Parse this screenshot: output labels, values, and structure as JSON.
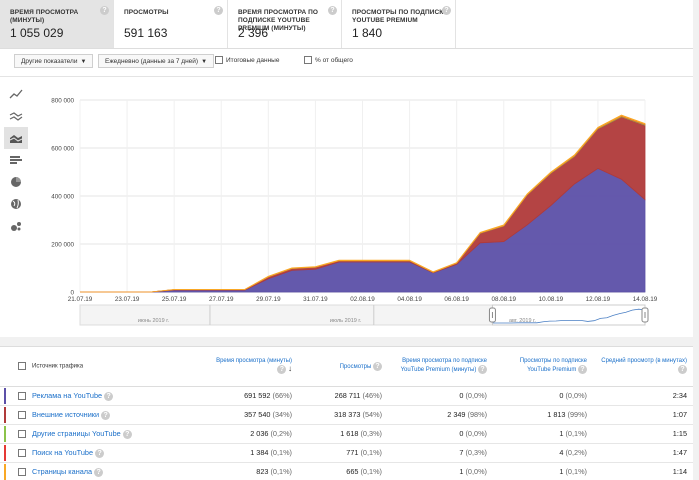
{
  "metrics": [
    {
      "label": "ВРЕМЯ ПРОСМОТРА (МИНУТЫ)",
      "value": "1 055 029",
      "active": true
    },
    {
      "label": "ПРОСМОТРЫ",
      "value": "591 163",
      "active": false
    },
    {
      "label": "ВРЕМЯ ПРОСМОТРА ПО ПОДПИСКЕ YOUTUBE PREMIUM (МИНУТЫ)",
      "value": "2 396",
      "active": false
    },
    {
      "label": "ПРОСМОТРЫ ПО ПОДПИСКЕ YOUTUBE PREMIUM",
      "value": "1 840",
      "active": false
    }
  ],
  "toolbar": {
    "other_metrics": "Другие показатели",
    "period": "Ежедневно (данные за 7 дней)",
    "totals": "Итоговые данные",
    "percent": "% от общего"
  },
  "chart_type_icons": [
    "line-chart-icon",
    "multi-line-icon",
    "stacked-area-icon",
    "bar-chart-icon",
    "pie-chart-icon",
    "map-icon",
    "bubble-chart-icon"
  ],
  "chart_data": {
    "type": "area",
    "stacked": true,
    "x": [
      "21.07.19",
      "22.07.19",
      "23.07.19",
      "24.07.19",
      "25.07.19",
      "26.07.19",
      "27.07.19",
      "28.07.19",
      "29.07.19",
      "30.07.19",
      "31.07.19",
      "01.08.19",
      "02.08.19",
      "03.08.19",
      "04.08.19",
      "05.08.19",
      "06.08.19",
      "07.08.19",
      "08.08.19",
      "09.08.19",
      "10.08.19",
      "11.08.19",
      "12.08.19",
      "13.08.19",
      "14.08.19"
    ],
    "x_tick_labels": [
      "21.07.19",
      "23.07.19",
      "25.07.19",
      "27.07.19",
      "29.07.19",
      "31.07.19",
      "02.08.19",
      "04.08.19",
      "06.08.19",
      "08.08.19",
      "10.08.19",
      "12.08.19",
      "14.08.19"
    ],
    "y_tick_labels": [
      "0",
      "200 000",
      "400 000",
      "600 000",
      "800 000"
    ],
    "ylim": [
      0,
      800000
    ],
    "series": [
      {
        "name": "Реклама на YouTube",
        "color": "#5c50a8",
        "values": [
          0,
          0,
          0,
          0,
          8000,
          8000,
          8000,
          8000,
          55000,
          90000,
          95000,
          125000,
          125000,
          125000,
          125000,
          80000,
          115000,
          205000,
          210000,
          280000,
          360000,
          450000,
          515000,
          470000,
          385000
        ]
      },
      {
        "name": "Внешние источники",
        "color": "#b03a3a",
        "values": [
          0,
          0,
          0,
          0,
          2000,
          2000,
          2000,
          2000,
          8000,
          8000,
          8000,
          5000,
          5000,
          5000,
          5000,
          2000,
          5000,
          40000,
          65000,
          125000,
          135000,
          115000,
          165000,
          260000,
          310000
        ]
      },
      {
        "name": "Другие страницы YouTube",
        "color": "#8bc34a",
        "values": [
          0,
          0,
          0,
          0,
          0,
          0,
          0,
          0,
          500,
          500,
          500,
          500,
          500,
          500,
          500,
          500,
          500,
          1000,
          1000,
          1000,
          1500,
          2000,
          2000,
          2500,
          2500
        ]
      },
      {
        "name": "Поиск на YouTube",
        "color": "#e53935",
        "values": [
          0,
          0,
          0,
          0,
          0,
          0,
          0,
          0,
          0,
          0,
          0,
          0,
          0,
          0,
          0,
          0,
          0,
          500,
          500,
          500,
          500,
          1000,
          1000,
          1500,
          1500
        ]
      },
      {
        "name": "Страницы канала",
        "color": "#f9a825",
        "values": [
          0,
          0,
          0,
          0,
          1000,
          1000,
          1000,
          1000,
          2000,
          2000,
          2000,
          2000,
          2000,
          2000,
          2000,
          2000,
          2000,
          2000,
          3000,
          3000,
          3000,
          3000,
          3000,
          3000,
          3000
        ]
      }
    ],
    "grid": true
  },
  "navigator": {
    "labels": [
      "июнь 2019 г.",
      "июль 2019 г.",
      "авг. 2019 г."
    ]
  },
  "table": {
    "headers": {
      "source": "Источник трафика",
      "watch_time": "Время просмотра (минуты)",
      "views": "Просмотры",
      "premium_time": "Время просмотра по подписке YouTube Premium (минуты)",
      "premium_views": "Просмотры по подписке YouTube Premium",
      "avg_duration": "Средний просмотр (в минутах)"
    },
    "rows": [
      {
        "color": "#5c50a8",
        "source": "Реклама на YouTube",
        "watch": "691 592",
        "watch_pct": "(66%)",
        "views": "268 711",
        "views_pct": "(46%)",
        "ptime": "0",
        "ptime_pct": "(0,0%)",
        "pviews": "0",
        "pviews_pct": "(0,0%)",
        "avg": "2:34"
      },
      {
        "color": "#b03a3a",
        "source": "Внешние источники",
        "watch": "357 540",
        "watch_pct": "(34%)",
        "views": "318 373",
        "views_pct": "(54%)",
        "ptime": "2 349",
        "ptime_pct": "(98%)",
        "pviews": "1 813",
        "pviews_pct": "(99%)",
        "avg": "1:07"
      },
      {
        "color": "#8bc34a",
        "source": "Другие страницы YouTube",
        "watch": "2 036",
        "watch_pct": "(0,2%)",
        "views": "1 618",
        "views_pct": "(0,3%)",
        "ptime": "0",
        "ptime_pct": "(0,0%)",
        "pviews": "1",
        "pviews_pct": "(0,1%)",
        "avg": "1:15"
      },
      {
        "color": "#e53935",
        "source": "Поиск на YouTube",
        "watch": "1 384",
        "watch_pct": "(0,1%)",
        "views": "771",
        "views_pct": "(0,1%)",
        "ptime": "7",
        "ptime_pct": "(0,3%)",
        "pviews": "4",
        "pviews_pct": "(0,2%)",
        "avg": "1:47"
      },
      {
        "color": "#f9a825",
        "source": "Страницы канала",
        "watch": "823",
        "watch_pct": "(0,1%)",
        "views": "665",
        "views_pct": "(0,1%)",
        "ptime": "1",
        "ptime_pct": "(0,0%)",
        "pviews": "1",
        "pviews_pct": "(0,1%)",
        "avg": "1:14"
      }
    ]
  }
}
